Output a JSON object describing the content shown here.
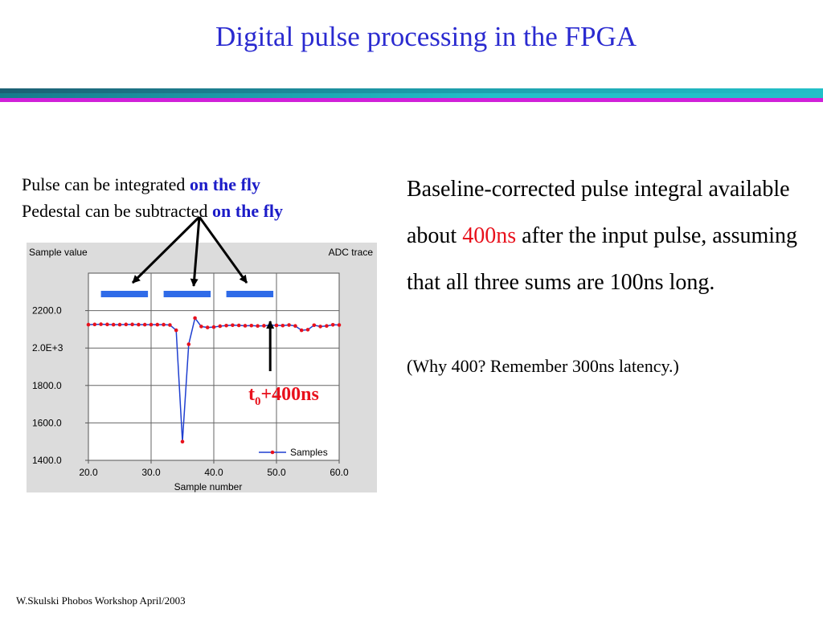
{
  "title": "Digital pulse processing in the FPGA",
  "theme_colors": {
    "title": "#2b2bd0",
    "bar_dark": "#1c5f73",
    "bar_cyan": "#22c0c8",
    "bar_magenta": "#d020d8",
    "accent_red": "#e8111c"
  },
  "left_note": {
    "line1_prefix": "Pulse can be integrated ",
    "line1_emph": "on the fly",
    "line2_prefix": "Pedestal can be subtracted ",
    "line2_emph": "on the fly"
  },
  "right_text": {
    "part1": "Baseline-corrected pulse integral available about ",
    "highlight": "400ns",
    "part2": " after the input pulse, assuming that all three sums are 100ns long."
  },
  "right_note": "(Why 400? Remember 300ns latency.)",
  "marker": {
    "text_main": "t",
    "text_sub": "0",
    "text_tail": "+400ns",
    "x_sample": 49
  },
  "chart_data": {
    "type": "line",
    "title_left": "Sample value",
    "title_right": "ADC trace",
    "xlabel": "Sample number",
    "ylabel": "",
    "xlim": [
      20,
      60
    ],
    "ylim": [
      1400,
      2400
    ],
    "xticks": [
      20,
      30,
      40,
      50,
      60
    ],
    "xtick_labels": [
      "20.0",
      "30.0",
      "40.0",
      "50.0",
      "60.0"
    ],
    "yticks": [
      1400,
      1600,
      1800,
      2000,
      2200
    ],
    "ytick_labels": [
      "1400.0",
      "1600.0",
      "1800.0",
      "2.0E+3",
      "2200.0"
    ],
    "grid": true,
    "legend_position": "bottom-right",
    "series": [
      {
        "name": "Samples",
        "color": "#1f3fd0",
        "marker_color": "#e8111c",
        "x": [
          20,
          21,
          22,
          23,
          24,
          25,
          26,
          27,
          28,
          29,
          30,
          31,
          32,
          33,
          34,
          35,
          36,
          37,
          38,
          39,
          40,
          41,
          42,
          43,
          44,
          45,
          46,
          47,
          48,
          49,
          50,
          51,
          52,
          53,
          54,
          55,
          56,
          57,
          58,
          59,
          60
        ],
        "y": [
          2125,
          2126,
          2127,
          2126,
          2125,
          2125,
          2126,
          2126,
          2125,
          2125,
          2125,
          2125,
          2125,
          2123,
          2095,
          1500,
          2020,
          2160,
          2115,
          2110,
          2112,
          2117,
          2120,
          2122,
          2121,
          2119,
          2120,
          2118,
          2119,
          2122,
          2121,
          2120,
          2123,
          2118,
          2095,
          2098,
          2122,
          2115,
          2118,
          2124,
          2123
        ]
      }
    ],
    "integration_windows": [
      [
        22,
        29.5
      ],
      [
        32,
        39.5
      ],
      [
        42,
        49.5
      ]
    ]
  },
  "footer": {
    "text": "W.Skulski  Phobos Workshop April/2003"
  }
}
